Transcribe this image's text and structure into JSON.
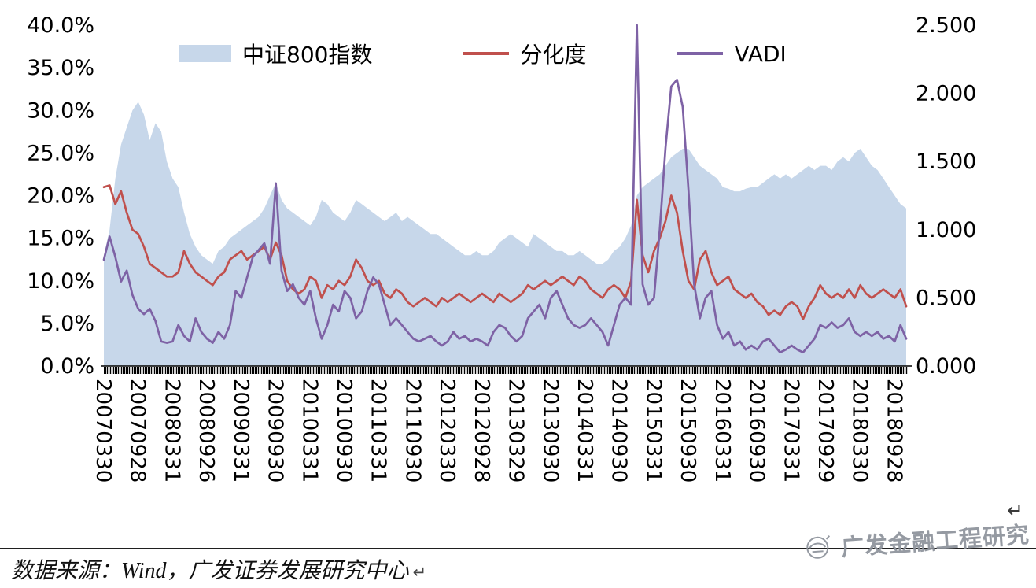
{
  "window": {
    "background": "#ffffff"
  },
  "legend": {
    "items": [
      {
        "label": "中证800指数",
        "color": "#c7d7ea",
        "type": "area"
      },
      {
        "label": "分化度",
        "color": "#c0504d",
        "type": "line"
      },
      {
        "label": "VADI",
        "color": "#7e62a5",
        "type": "line"
      }
    ]
  },
  "marks": {
    "return_glyph": "↵"
  },
  "footer": {
    "source_text": "数据来源：Wind，广发证券发展研究中心",
    "watermark": "广发金融工程研究"
  },
  "chart_data": {
    "type": "combo",
    "subtypes": [
      "area",
      "line",
      "line"
    ],
    "x_unit": "month",
    "x_tick_every": 6,
    "x_tick_labels": [
      "20070330",
      "20070928",
      "20080331",
      "20080926",
      "20090331",
      "20090930",
      "20100331",
      "20100930",
      "20110331",
      "20110930",
      "20120330",
      "20120928",
      "20130329",
      "20130930",
      "20140331",
      "20140930",
      "20150331",
      "20150930",
      "20160331",
      "20160930",
      "20170331",
      "20170929",
      "20180330",
      "20180928"
    ],
    "left_axis": {
      "min": 0,
      "max": 40,
      "tick_step": 5,
      "ticks": [
        "0.0%",
        "5.0%",
        "10.0%",
        "15.0%",
        "20.0%",
        "25.0%",
        "30.0%",
        "35.0%",
        "40.0%"
      ]
    },
    "right_axis": {
      "min": 0,
      "max": 2.5,
      "tick_step": 0.5,
      "ticks": [
        "0.000",
        "0.500",
        "1.000",
        "1.500",
        "2.000",
        "2.500"
      ]
    },
    "grid": false,
    "legend_position": "top",
    "series": [
      {
        "name": "中证800指数",
        "type": "area",
        "axis": "left",
        "color": "#c7d7ea",
        "values": [
          13,
          16,
          22,
          26,
          28,
          30,
          31,
          29.5,
          26.5,
          28.5,
          27.5,
          24,
          22,
          21,
          18,
          15.5,
          14,
          13,
          12.5,
          12,
          13.5,
          14,
          15,
          15.5,
          16,
          16.5,
          17,
          17.5,
          18.5,
          20,
          21.5,
          19.5,
          18.5,
          18,
          17.5,
          17,
          16.5,
          17.5,
          19.5,
          19,
          18,
          17.5,
          17,
          18,
          19.5,
          19,
          18.5,
          18,
          17.5,
          17,
          17.5,
          18,
          17,
          17.5,
          17,
          16.5,
          16,
          15.5,
          15.5,
          15,
          14.5,
          14,
          13.5,
          13,
          13,
          13.5,
          13,
          13,
          13.5,
          14.5,
          15,
          15.5,
          15,
          14.5,
          14,
          15.5,
          15,
          14.5,
          14,
          13.5,
          13.5,
          13,
          13,
          13.5,
          13,
          12.5,
          12,
          12,
          12.5,
          13.5,
          14,
          15,
          16.5,
          20,
          21,
          21.5,
          22,
          22.5,
          23.5,
          24.5,
          25,
          25.5,
          25.5,
          24.5,
          23.5,
          23,
          22.5,
          22,
          21,
          20.8,
          20.5,
          20.5,
          20.8,
          21,
          21,
          21.5,
          22,
          22.5,
          22,
          22.5,
          22,
          22.5,
          23,
          23.5,
          23,
          23.5,
          23.5,
          23,
          24,
          24.5,
          24,
          25,
          25.5,
          24.5,
          23.5,
          23,
          22,
          21,
          20,
          19,
          18.5
        ]
      },
      {
        "name": "分化度",
        "type": "line",
        "axis": "left",
        "color": "#c0504d",
        "values": [
          21,
          21.2,
          19,
          20.5,
          18,
          16,
          15.5,
          14,
          12,
          11.5,
          11,
          10.5,
          10.5,
          11,
          13.5,
          12,
          11,
          10.5,
          10,
          9.5,
          10.5,
          11,
          12.5,
          13,
          13.5,
          12.5,
          13,
          13.5,
          14,
          12.5,
          14.5,
          13,
          10,
          9,
          8.5,
          9,
          10.5,
          10,
          8,
          9.5,
          9,
          10,
          9.5,
          10.5,
          12.5,
          11.5,
          10,
          9.5,
          10,
          8.5,
          8,
          9,
          8.5,
          7.5,
          7,
          7.5,
          8,
          7.5,
          7,
          8,
          7.5,
          8,
          8.5,
          8,
          7.5,
          8,
          8.5,
          8,
          7.5,
          8.5,
          8,
          7.5,
          8,
          8.5,
          9.5,
          9,
          9.5,
          10,
          9.5,
          10,
          10.5,
          10,
          9.5,
          10.5,
          10,
          9,
          8.5,
          8,
          9,
          9.5,
          9,
          8,
          10,
          19.5,
          13,
          11,
          13.5,
          15,
          17,
          20,
          18,
          13.5,
          10,
          9,
          12.5,
          13.5,
          11,
          9.5,
          10,
          10.5,
          9,
          8.5,
          8,
          8.5,
          7.5,
          7,
          6,
          6.5,
          6,
          7,
          7.5,
          7,
          5.5,
          7,
          8,
          9.5,
          8.5,
          8,
          8.5,
          8,
          9,
          8,
          9.5,
          8.5,
          8,
          8.5,
          9,
          8.5,
          8,
          9,
          7
        ]
      },
      {
        "name": "VADI",
        "type": "line",
        "axis": "right",
        "color": "#7e62a5",
        "values": [
          0.78,
          0.95,
          0.8,
          0.62,
          0.7,
          0.52,
          0.42,
          0.38,
          0.42,
          0.33,
          0.18,
          0.17,
          0.18,
          0.3,
          0.22,
          0.18,
          0.35,
          0.25,
          0.2,
          0.17,
          0.25,
          0.2,
          0.3,
          0.55,
          0.5,
          0.65,
          0.8,
          0.85,
          0.9,
          0.75,
          1.34,
          0.7,
          0.55,
          0.6,
          0.5,
          0.45,
          0.55,
          0.35,
          0.2,
          0.3,
          0.45,
          0.4,
          0.55,
          0.5,
          0.35,
          0.4,
          0.55,
          0.65,
          0.6,
          0.45,
          0.3,
          0.35,
          0.3,
          0.25,
          0.2,
          0.18,
          0.2,
          0.22,
          0.18,
          0.15,
          0.18,
          0.25,
          0.2,
          0.22,
          0.18,
          0.2,
          0.18,
          0.15,
          0.25,
          0.3,
          0.28,
          0.22,
          0.18,
          0.22,
          0.35,
          0.4,
          0.45,
          0.35,
          0.5,
          0.55,
          0.45,
          0.35,
          0.3,
          0.28,
          0.3,
          0.35,
          0.3,
          0.25,
          0.15,
          0.3,
          0.45,
          0.5,
          0.45,
          2.5,
          0.6,
          0.45,
          0.5,
          1.0,
          1.6,
          2.05,
          2.1,
          1.9,
          1.3,
          0.6,
          0.35,
          0.5,
          0.55,
          0.3,
          0.2,
          0.25,
          0.15,
          0.18,
          0.12,
          0.15,
          0.12,
          0.18,
          0.2,
          0.15,
          0.1,
          0.12,
          0.15,
          0.12,
          0.1,
          0.15,
          0.2,
          0.3,
          0.28,
          0.32,
          0.28,
          0.3,
          0.35,
          0.25,
          0.22,
          0.25,
          0.22,
          0.25,
          0.2,
          0.22,
          0.18,
          0.3,
          0.2
        ]
      }
    ]
  }
}
